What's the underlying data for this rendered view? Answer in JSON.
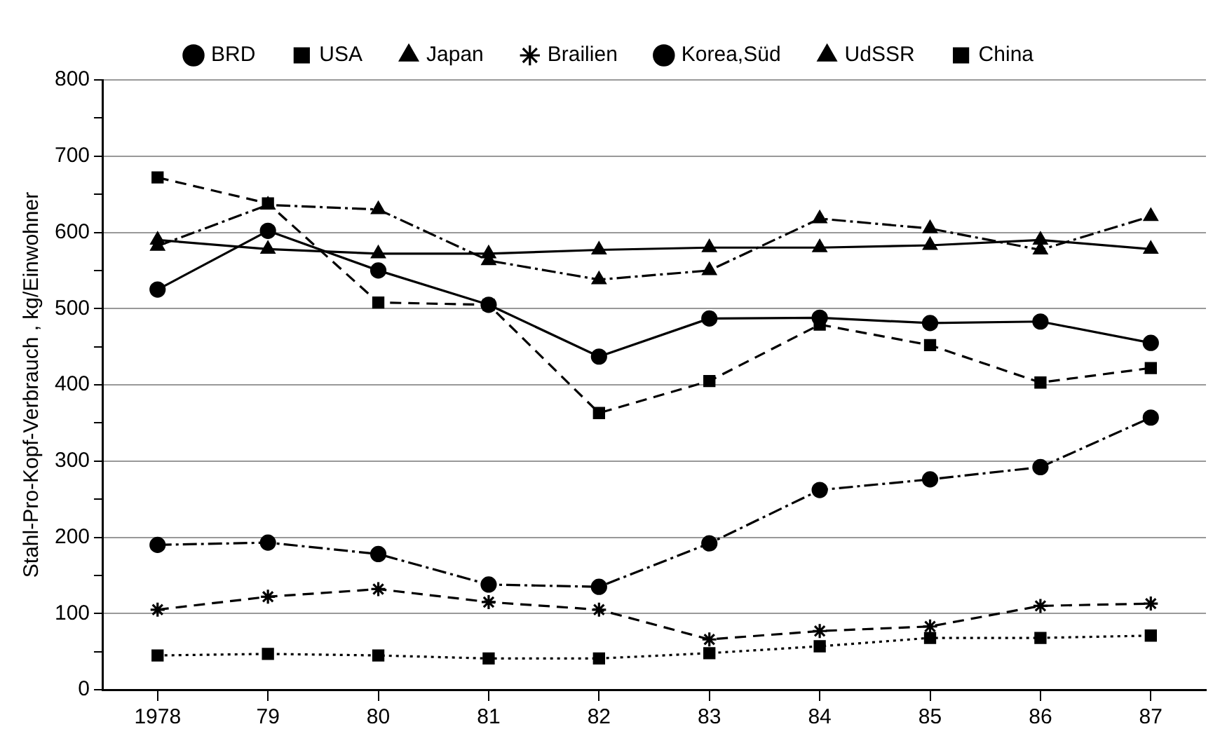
{
  "chart_data": {
    "type": "line",
    "ylabel": "Stahl-Pro-Kopf-Verbrauch , kg/Einwohner",
    "categories": [
      "1978",
      "79",
      "80",
      "81",
      "82",
      "83",
      "84",
      "85",
      "86",
      "87"
    ],
    "ylim": [
      0,
      800
    ],
    "yticks": [
      0,
      {
        "value": 50,
        "label": null
      },
      100,
      {
        "value": 150,
        "label": null
      },
      200,
      {
        "value": 250,
        "label": null
      },
      300,
      {
        "value": 350,
        "label": null
      },
      400,
      {
        "value": 450,
        "label": null
      },
      500,
      {
        "value": 550,
        "label": null
      },
      600,
      {
        "value": 650,
        "label": null
      },
      700,
      {
        "value": 750,
        "label": null
      },
      800
    ],
    "grid": "y",
    "legend": "top",
    "series": [
      {
        "name": "BRD",
        "color": "#000000",
        "marker": "circle",
        "line_style": "solid",
        "values": [
          525,
          602,
          550,
          505,
          437,
          487,
          488,
          481,
          483,
          455
        ]
      },
      {
        "name": "USA",
        "color": "#000000",
        "marker": "square",
        "line_style": "dashed",
        "values": [
          672,
          638,
          508,
          505,
          363,
          405,
          479,
          452,
          403,
          422
        ]
      },
      {
        "name": "Japan",
        "color": "#000000",
        "marker": "triangle",
        "line_style": "dashdot",
        "values": [
          582,
          636,
          630,
          563,
          538,
          550,
          618,
          605,
          577,
          621
        ]
      },
      {
        "name": "Brailien",
        "color": "#000000",
        "marker": "cross",
        "line_style": "dashed",
        "values": [
          105,
          122,
          132,
          115,
          105,
          66,
          77,
          83,
          110,
          113
        ]
      },
      {
        "name": "Korea,Süd",
        "color": "#000000",
        "marker": "circle",
        "line_style": "dashdot",
        "values": [
          190,
          193,
          178,
          138,
          135,
          192,
          262,
          276,
          292,
          357
        ]
      },
      {
        "name": "UdSSR",
        "color": "#000000",
        "marker": "triangle",
        "line_style": "solid",
        "values": [
          590,
          578,
          572,
          572,
          577,
          580,
          580,
          583,
          590,
          578
        ]
      },
      {
        "name": "China",
        "color": "#000000",
        "marker": "square",
        "line_style": "dotted",
        "values": [
          45,
          47,
          45,
          41,
          41,
          48,
          57,
          68,
          68,
          71
        ]
      }
    ]
  }
}
